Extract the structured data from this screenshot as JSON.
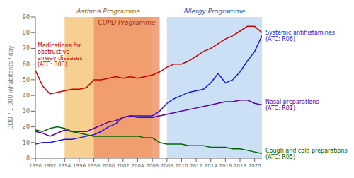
{
  "chart_data": {
    "type": "line",
    "x": [
      1990,
      1991,
      1992,
      1993,
      1994,
      1995,
      1996,
      1997,
      1998,
      1999,
      2000,
      2001,
      2002,
      2003,
      2004,
      2005,
      2006,
      2007,
      2008,
      2009,
      2010,
      2011,
      2012,
      2013,
      2014,
      2015,
      2016,
      2017,
      2018,
      2019,
      2020,
      2021
    ],
    "xlim": [
      1990,
      2021
    ],
    "xticks": [
      1990,
      1992,
      1994,
      1996,
      1998,
      2000,
      2002,
      2004,
      2006,
      2008,
      2010,
      2012,
      2014,
      2016,
      2018,
      2020
    ],
    "ylim": [
      0,
      90
    ],
    "yticks": [
      0,
      10,
      20,
      30,
      40,
      50,
      60,
      70,
      80,
      90
    ],
    "ylabel": "DDD / 1 000 inhabitants / day",
    "grid": false,
    "series": [
      {
        "name": "Medications for\nobstructive\nairway diseases\n(ATC: R03)",
        "color": "#cc0000",
        "values": [
          56,
          46,
          41,
          42,
          43,
          44,
          44,
          45,
          50,
          50,
          51,
          52,
          51,
          52,
          51,
          52,
          53,
          55,
          58,
          60,
          60,
          62,
          65,
          68,
          70,
          73,
          76,
          78,
          81,
          84,
          84,
          80
        ]
      },
      {
        "name": "Systemic antihistamines\n(ATC: R06)",
        "color": "#1a1aee",
        "values": [
          9,
          10,
          10,
          11,
          12,
          12,
          13,
          14,
          15,
          17,
          20,
          22,
          26,
          27,
          27,
          27,
          27,
          30,
          35,
          38,
          40,
          42,
          43,
          44,
          48,
          54,
          48,
          50,
          55,
          62,
          68,
          78
        ]
      },
      {
        "name": "Nasal preparations\n(ATC: R01)",
        "color": "#5500aa",
        "values": [
          17,
          16,
          14,
          16,
          18,
          17,
          17,
          17,
          19,
          21,
          23,
          24,
          26,
          27,
          26,
          26,
          26,
          27,
          28,
          29,
          30,
          31,
          32,
          33,
          34,
          35,
          36,
          36,
          37,
          37,
          35,
          34
        ]
      },
      {
        "name": "Cough and cold preparations\n(ATC: R05)",
        "color": "#006600",
        "values": [
          18,
          17,
          19,
          20,
          19,
          17,
          16,
          15,
          14,
          14,
          14,
          14,
          14,
          14,
          14,
          13,
          13,
          10,
          9,
          9,
          9,
          8,
          8,
          8,
          7,
          7,
          7,
          6,
          6,
          5,
          4,
          3
        ]
      }
    ],
    "bands": [
      {
        "label": "Asthma Programme",
        "start": 1994,
        "end": 2006,
        "color": "#f5d090"
      },
      {
        "label": "COPD Programme",
        "start": 1998,
        "end": 2007,
        "color": "#f0956a"
      },
      {
        "label": "Allergy Programme",
        "start": 2008,
        "end": 2021,
        "color": "#cce0f5"
      }
    ]
  }
}
